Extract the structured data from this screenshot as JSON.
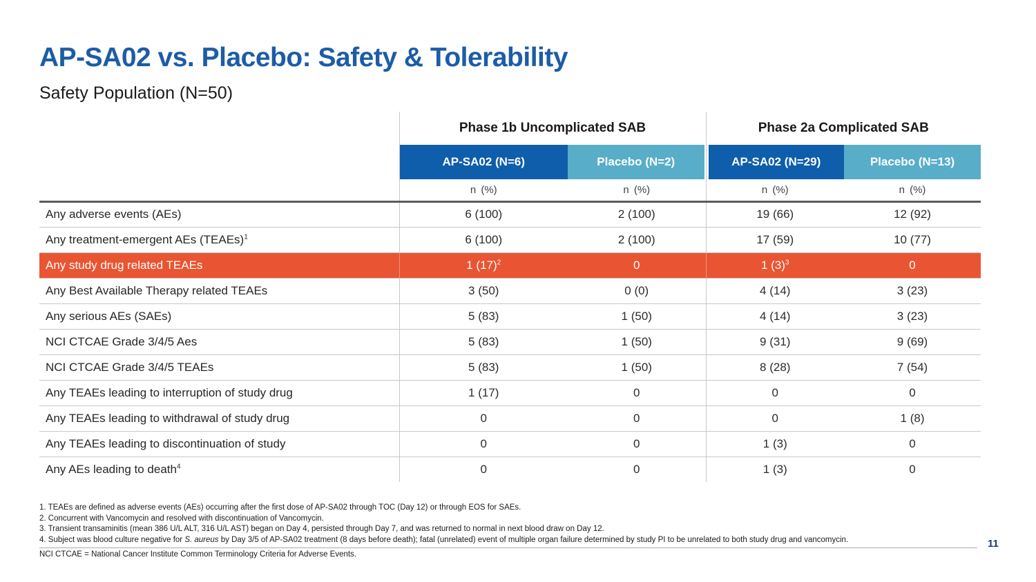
{
  "slide": {
    "title": "AP-SA02 vs. Placebo: Safety & Tolerability",
    "subtitle": "Safety Population (N=50)",
    "page_number": "11"
  },
  "colors": {
    "title_blue": "#1D5CA6",
    "header_dark_blue": "#0F5EAB",
    "header_light_blue": "#58ADC9",
    "highlight_orange": "#E95532",
    "grid_line_gray": "#C7C8CA",
    "thick_rule_gray": "#595A5C",
    "page_number_navy": "#203A66"
  },
  "table": {
    "group1_title": "Phase 1b Uncomplicated SAB",
    "group2_title": "Phase 2a Complicated SAB",
    "col1": "AP-SA02 (N=6)",
    "col2": "Placebo (N=2)",
    "col3": "AP-SA02 (N=29)",
    "col4": "Placebo (N=13)",
    "unit": "n (%)",
    "rows": [
      {
        "label": "Any adverse events (AEs)",
        "sup": "",
        "highlight": false,
        "values": [
          {
            "text": "6 (100)",
            "sup": ""
          },
          {
            "text": "2 (100)",
            "sup": ""
          },
          {
            "text": "19 (66)",
            "sup": ""
          },
          {
            "text": "12 (92)",
            "sup": ""
          }
        ]
      },
      {
        "label": "Any treatment-emergent AEs (TEAEs)",
        "sup": "1",
        "highlight": false,
        "values": [
          {
            "text": "6 (100)",
            "sup": ""
          },
          {
            "text": "2 (100)",
            "sup": ""
          },
          {
            "text": "17 (59)",
            "sup": ""
          },
          {
            "text": "10 (77)",
            "sup": ""
          }
        ]
      },
      {
        "label": "Any study drug related TEAEs",
        "sup": "",
        "highlight": true,
        "values": [
          {
            "text": "1 (17)",
            "sup": "2"
          },
          {
            "text": "0",
            "sup": ""
          },
          {
            "text": "1 (3)",
            "sup": "3"
          },
          {
            "text": "0",
            "sup": ""
          }
        ]
      },
      {
        "label": "Any Best Available Therapy related TEAEs",
        "sup": "",
        "highlight": false,
        "values": [
          {
            "text": "3 (50)",
            "sup": ""
          },
          {
            "text": "0 (0)",
            "sup": ""
          },
          {
            "text": "4 (14)",
            "sup": ""
          },
          {
            "text": "3 (23)",
            "sup": ""
          }
        ]
      },
      {
        "label": "Any serious AEs (SAEs)",
        "sup": "",
        "highlight": false,
        "values": [
          {
            "text": "5 (83)",
            "sup": ""
          },
          {
            "text": "1 (50)",
            "sup": ""
          },
          {
            "text": "4 (14)",
            "sup": ""
          },
          {
            "text": "3 (23)",
            "sup": ""
          }
        ]
      },
      {
        "label": "NCI CTCAE Grade 3/4/5 Aes",
        "sup": "",
        "highlight": false,
        "values": [
          {
            "text": "5 (83)",
            "sup": ""
          },
          {
            "text": "1 (50)",
            "sup": ""
          },
          {
            "text": "9 (31)",
            "sup": ""
          },
          {
            "text": "9 (69)",
            "sup": ""
          }
        ]
      },
      {
        "label": "NCI CTCAE Grade 3/4/5 TEAEs",
        "sup": "",
        "highlight": false,
        "values": [
          {
            "text": "5 (83)",
            "sup": ""
          },
          {
            "text": "1 (50)",
            "sup": ""
          },
          {
            "text": "8 (28)",
            "sup": ""
          },
          {
            "text": "7 (54)",
            "sup": ""
          }
        ]
      },
      {
        "label": "Any TEAEs leading to interruption of study drug",
        "sup": "",
        "highlight": false,
        "values": [
          {
            "text": "1 (17)",
            "sup": ""
          },
          {
            "text": "0",
            "sup": ""
          },
          {
            "text": "0",
            "sup": ""
          },
          {
            "text": "0",
            "sup": ""
          }
        ]
      },
      {
        "label": "Any TEAEs leading to withdrawal of study drug",
        "sup": "",
        "highlight": false,
        "values": [
          {
            "text": "0",
            "sup": ""
          },
          {
            "text": "0",
            "sup": ""
          },
          {
            "text": "0",
            "sup": ""
          },
          {
            "text": "1 (8)",
            "sup": ""
          }
        ]
      },
      {
        "label": "Any TEAEs leading to discontinuation of study",
        "sup": "",
        "highlight": false,
        "values": [
          {
            "text": "0",
            "sup": ""
          },
          {
            "text": "0",
            "sup": ""
          },
          {
            "text": "1 (3)",
            "sup": ""
          },
          {
            "text": "0",
            "sup": ""
          }
        ]
      },
      {
        "label": "Any AEs leading to death",
        "sup": "4",
        "highlight": false,
        "values": [
          {
            "text": "0",
            "sup": ""
          },
          {
            "text": "0",
            "sup": ""
          },
          {
            "text": "1 (3)",
            "sup": ""
          },
          {
            "text": "0",
            "sup": ""
          }
        ]
      }
    ]
  },
  "footnotes": {
    "fn1": "1. TEAEs are defined as adverse events (AEs) occurring after the first dose of AP-SA02 through TOC (Day 12) or through EOS for SAEs.",
    "fn2": "2. Concurrent with Vancomycin and resolved with discontinuation of Vancomycin.",
    "fn3": "3. Transient transaminitis (mean 386 U/L ALT, 316 U/L AST) began on Day 4, persisted through Day 7, and was returned to normal in next blood draw on Day 12.",
    "fn4_pre": "4. Subject was blood culture negative for ",
    "fn4_italic": "S. aureus",
    "fn4_post": " by Day 3/5 of AP-SA02 treatment (8 days before death); fatal (unrelated) event of multiple organ failure determined by study PI to be unrelated to both study drug and vancomycin.",
    "abbrev": "NCI CTCAE = National Cancer Institute Common Terminology Criteria for Adverse Events."
  }
}
